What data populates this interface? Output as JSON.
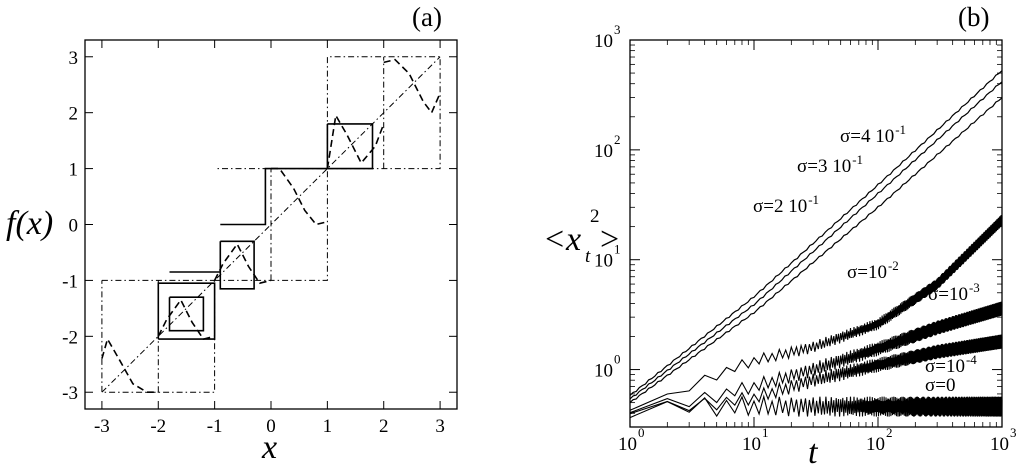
{
  "chart_data": [
    {
      "type": "line",
      "panel_label": "(a)",
      "xlabel": "x",
      "ylabel": "f(x)",
      "xlim": [
        -3.3,
        3.3
      ],
      "ylim": [
        -3.3,
        3.3
      ],
      "x_ticks": [
        "-3",
        "-2",
        "-1",
        "0",
        "1",
        "2",
        "3"
      ],
      "y_ticks": [
        "-3",
        "-2",
        "-1",
        "0",
        "1",
        "2",
        "3"
      ],
      "grid": false,
      "series": [
        {
          "style": "dashed",
          "segments": [
            [
              [
                -3,
                -2.4
              ],
              [
                -2.9,
                -2.05
              ],
              [
                -2.7,
                -2.4
              ],
              [
                -2.45,
                -2.85
              ],
              [
                -2.2,
                -3.0
              ],
              [
                -2,
                -3.0
              ]
            ],
            [
              [
                -2,
                -2.0
              ],
              [
                -1.85,
                -1.7
              ],
              [
                -1.6,
                -1.35
              ],
              [
                -1.4,
                -1.75
              ],
              [
                -1.2,
                -2.05
              ],
              [
                -1.0,
                -2.0
              ]
            ],
            [
              [
                -1,
                -1.0
              ],
              [
                -0.85,
                -0.7
              ],
              [
                -0.6,
                -0.35
              ],
              [
                -0.4,
                -0.75
              ],
              [
                -0.2,
                -1.05
              ],
              [
                0.0,
                -1.0
              ]
            ],
            [
              [
                0,
                1.0
              ],
              [
                0.15,
                1.0
              ],
              [
                0.4,
                0.65
              ],
              [
                0.6,
                0.25
              ],
              [
                0.8,
                0.0
              ],
              [
                1.0,
                0.05
              ]
            ],
            [
              [
                1,
                1.0
              ],
              [
                1.15,
                1.95
              ],
              [
                1.35,
                1.6
              ],
              [
                1.6,
                1.1
              ],
              [
                1.85,
                1.4
              ],
              [
                2.0,
                1.8
              ]
            ],
            [
              [
                2,
                2.9
              ],
              [
                2.2,
                2.95
              ],
              [
                2.45,
                2.7
              ],
              [
                2.7,
                2.2
              ],
              [
                2.85,
                2.0
              ],
              [
                3.0,
                2.35
              ]
            ]
          ]
        },
        {
          "style": "dashdot",
          "segments": [
            [
              [
                -3,
                -3
              ],
              [
                3,
                3
              ]
            ],
            [
              [
                -3,
                -1
              ],
              [
                -1,
                -1
              ],
              [
                -1,
                -3
              ],
              [
                -3,
                -3
              ],
              [
                -3,
                -1
              ]
            ],
            [
              [
                -2,
                -3
              ],
              [
                -2,
                -1
              ]
            ],
            [
              [
                -1,
                -1
              ],
              [
                1,
                -1
              ],
              [
                1,
                1
              ],
              [
                -1,
                1
              ]
            ],
            [
              [
                0,
                -1
              ],
              [
                0,
                1
              ]
            ],
            [
              [
                1,
                1
              ],
              [
                3,
                1
              ],
              [
                3,
                3
              ],
              [
                1,
                3
              ],
              [
                1,
                1
              ]
            ],
            [
              [
                2,
                1
              ],
              [
                2,
                3
              ]
            ]
          ]
        },
        {
          "style": "solid",
          "segments": [
            [
              [
                -1.8,
                -1.3
              ],
              [
                -1.2,
                -1.3
              ],
              [
                -1.2,
                -1.9
              ],
              [
                -1.8,
                -1.9
              ],
              [
                -1.8,
                -1.3
              ]
            ],
            [
              [
                -2.0,
                -2.05
              ],
              [
                -1.0,
                -2.05
              ],
              [
                -1.0,
                -1.05
              ],
              [
                -2.0,
                -1.05
              ],
              [
                -2.0,
                -2.05
              ]
            ],
            [
              [
                -0.9,
                -0.3
              ],
              [
                -0.3,
                -0.3
              ],
              [
                -0.3,
                -1.15
              ],
              [
                -0.9,
                -1.15
              ],
              [
                -0.9,
                -0.3
              ]
            ],
            [
              [
                -1.8,
                -0.85
              ],
              [
                -0.9,
                -0.85
              ]
            ],
            [
              [
                -0.9,
                0.0
              ],
              [
                -0.1,
                0.0
              ],
              [
                -0.1,
                1.0
              ],
              [
                1.0,
                1.0
              ]
            ],
            [
              [
                1.0,
                1.8
              ],
              [
                1.8,
                1.8
              ],
              [
                1.8,
                1.0
              ],
              [
                1.0,
                1.0
              ],
              [
                1.0,
                1.8
              ]
            ]
          ]
        }
      ]
    },
    {
      "type": "line",
      "panel_label": "(b)",
      "xlabel": "t",
      "ylabel": "<x_t^2>",
      "xscale": "log",
      "yscale": "log",
      "xlim": [
        1,
        1000
      ],
      "ylim": [
        0.3,
        1000
      ],
      "x_ticks": [
        {
          "value": 1,
          "base": "10",
          "exp": "0"
        },
        {
          "value": 10,
          "base": "10",
          "exp": "1"
        },
        {
          "value": 100,
          "base": "10",
          "exp": "2"
        },
        {
          "value": 1000,
          "base": "10",
          "exp": "3"
        }
      ],
      "y_ticks": [
        {
          "value": 1,
          "base": "10",
          "exp": "0"
        },
        {
          "value": 10,
          "base": "10",
          "exp": "1"
        },
        {
          "value": 100,
          "base": "10",
          "exp": "2"
        },
        {
          "value": 1000,
          "base": "10",
          "exp": "3"
        }
      ],
      "grid": false,
      "series": [
        {
          "name": "σ=4 10^-1",
          "x": [
            1,
            10,
            100,
            1000
          ],
          "y": [
            0.58,
            4.6,
            48,
            530
          ],
          "noise": 0.0
        },
        {
          "name": "σ=3 10^-1",
          "x": [
            1,
            10,
            100,
            1000
          ],
          "y": [
            0.54,
            3.9,
            40,
            420
          ],
          "noise": 0.0
        },
        {
          "name": "σ=2 10^-1",
          "x": [
            1,
            10,
            100,
            1000
          ],
          "y": [
            0.5,
            3.3,
            30,
            300
          ],
          "noise": 0.0
        },
        {
          "name": "σ=10^-2",
          "x": [
            1,
            2,
            5,
            10,
            30,
            100,
            300,
            1000
          ],
          "y": [
            0.48,
            0.55,
            0.9,
            1.2,
            1.6,
            2.6,
            6.0,
            23
          ],
          "noise": 0.04
        },
        {
          "name": "σ=10^-3",
          "x": [
            1,
            3,
            10,
            30,
            100,
            300,
            1000
          ],
          "y": [
            0.47,
            0.5,
            0.7,
            1.0,
            1.55,
            2.4,
            3.6
          ],
          "noise": 0.05
        },
        {
          "name": "σ=10^-4",
          "x": [
            1,
            3,
            10,
            30,
            100,
            300,
            1000
          ],
          "y": [
            0.46,
            0.46,
            0.55,
            0.8,
            1.1,
            1.45,
            1.8
          ],
          "noise": 0.05
        },
        {
          "name": "σ=0",
          "x": [
            1,
            2,
            3,
            10,
            100,
            1000
          ],
          "y": [
            0.45,
            0.44,
            0.46,
            0.46,
            0.46,
            0.46
          ],
          "noise": 0.07
        }
      ],
      "annotations": [
        {
          "base": "σ=4 10",
          "exp": "-1"
        },
        {
          "base": "σ=3 10",
          "exp": "-1"
        },
        {
          "base": "σ=2 10",
          "exp": "-1"
        },
        {
          "base": "σ=10",
          "exp": "-2"
        },
        {
          "base": "σ=10",
          "exp": "-3"
        },
        {
          "base": "σ=10",
          "exp": "-4"
        },
        {
          "base": "σ=0",
          "exp": ""
        }
      ]
    }
  ]
}
